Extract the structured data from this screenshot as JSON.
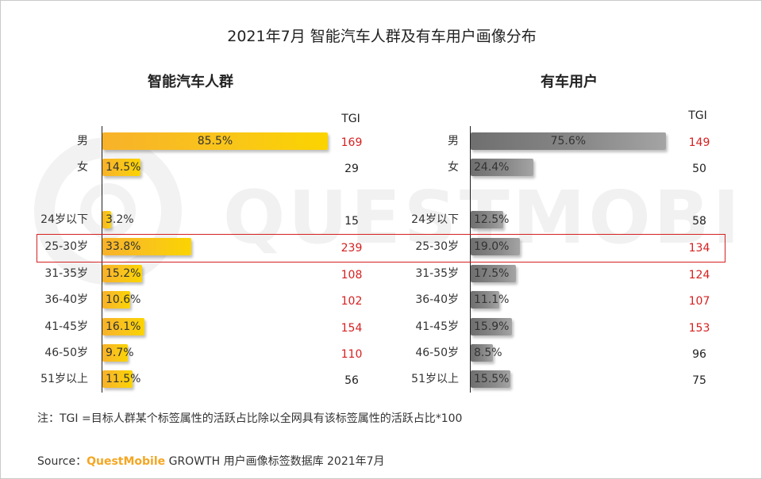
{
  "title": "2021年7月 智能汽车人群及有车用户画像分布",
  "colors": {
    "gold": "#f9c51a",
    "gray": "#808080",
    "tgi_high": "#d62020",
    "tgi_normal": "#222222",
    "highlight": "#d62020",
    "brand": "#f5a623"
  },
  "watermark_text": "QUESTMOBILE",
  "tgi_label": "TGI",
  "chart_data": [
    {
      "type": "bar",
      "orientation": "horizontal",
      "title": "智能汽车人群",
      "categories": [
        "男",
        "女",
        "24岁以下",
        "25-30岁",
        "31-35岁",
        "36-40岁",
        "41-45岁",
        "46-50岁",
        "51岁以上"
      ],
      "values": [
        85.5,
        14.5,
        3.2,
        33.8,
        15.2,
        10.6,
        16.1,
        9.7,
        11.5
      ],
      "labels": [
        "85.5%",
        "14.5%",
        "3.2%",
        "33.8%",
        "15.2%",
        "10.6%",
        "16.1%",
        "9.7%",
        "11.5%"
      ],
      "tgi": [
        169,
        29,
        15,
        239,
        108,
        102,
        154,
        110,
        56
      ],
      "tgi_label": "TGI",
      "xlim": [
        0,
        100
      ],
      "highlighted_category": "25-30岁"
    },
    {
      "type": "bar",
      "orientation": "horizontal",
      "title": "有车用户",
      "categories": [
        "男",
        "女",
        "24岁以下",
        "25-30岁",
        "31-35岁",
        "36-40岁",
        "41-45岁",
        "46-50岁",
        "51岁以上"
      ],
      "values": [
        75.6,
        24.4,
        12.5,
        19.0,
        17.5,
        11.1,
        15.9,
        8.5,
        15.5
      ],
      "labels": [
        "75.6%",
        "24.4%",
        "12.5%",
        "19.0%",
        "17.5%",
        "11.1%",
        "15.9%",
        "8.5%",
        "15.5%"
      ],
      "tgi": [
        149,
        50,
        58,
        134,
        124,
        107,
        153,
        96,
        75
      ],
      "tgi_label": "TGI",
      "xlim": [
        0,
        100
      ],
      "highlighted_category": "25-30岁"
    }
  ],
  "note": "注：TGI =目标人群某个标签属性的活跃占比除以全网具有该标签属性的活跃占比*100",
  "source": {
    "prefix": "Source：",
    "brand": "QuestMobile",
    "suffix": " GROWTH 用户画像标签数据库 2021年7月"
  }
}
